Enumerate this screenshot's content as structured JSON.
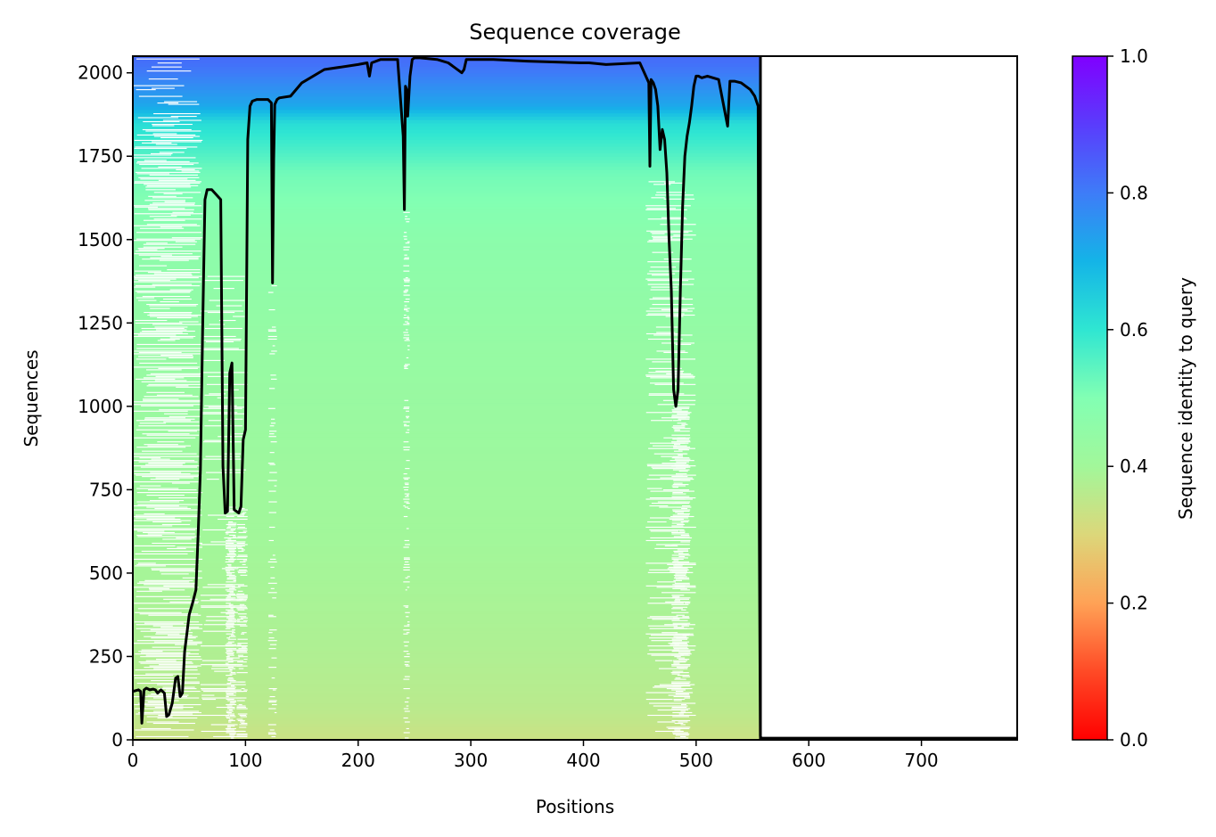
{
  "chart_data": {
    "type": "heatmap",
    "title": "Sequence coverage",
    "xlabel": "Positions",
    "ylabel": "Sequences",
    "xlim": [
      0,
      785
    ],
    "ylim": [
      0,
      2050
    ],
    "xticks": [
      0,
      100,
      200,
      300,
      400,
      500,
      600,
      700
    ],
    "yticks": [
      0,
      250,
      500,
      750,
      1000,
      1250,
      1500,
      1750,
      2000
    ],
    "query_length": 558,
    "n_sequences": 2050,
    "colorbar": {
      "label": "Sequence identity to query",
      "colormap": "rainbow",
      "range": [
        0.0,
        1.0
      ],
      "ticks": [
        0.0,
        0.2,
        0.4,
        0.6,
        0.8,
        1.0
      ],
      "tick_labels": [
        "0.0",
        "0.2",
        "0.4",
        "0.6",
        "0.8",
        "1.0"
      ]
    },
    "identity_by_sequence_rank": {
      "sequence": [
        0,
        100,
        300,
        600,
        900,
        1200,
        1500,
        1700,
        1850,
        1900,
        2000,
        2050
      ],
      "identity": [
        0.33,
        0.36,
        0.38,
        0.4,
        0.42,
        0.44,
        0.47,
        0.52,
        0.62,
        0.72,
        0.8,
        0.83
      ]
    },
    "coverage_line": {
      "name": "coverage",
      "x": [
        0,
        5,
        7,
        8,
        10,
        12,
        15,
        18,
        20,
        22,
        25,
        28,
        30,
        32,
        35,
        38,
        40,
        42,
        44,
        46,
        48,
        50,
        53,
        56,
        58,
        60,
        62,
        64,
        66,
        70,
        78,
        80,
        82,
        84,
        86,
        88,
        90,
        92,
        94,
        96,
        98,
        100,
        102,
        104,
        106,
        110,
        120,
        123,
        124,
        125,
        126,
        128,
        130,
        140,
        150,
        170,
        200,
        208,
        210,
        212,
        220,
        235,
        240,
        241,
        242,
        243,
        244,
        246,
        248,
        250,
        255,
        270,
        280,
        290,
        292,
        294,
        296,
        300,
        320,
        350,
        398,
        400,
        405,
        420,
        450,
        458,
        459,
        460,
        462,
        464,
        466,
        468,
        470,
        472,
        474,
        476,
        478,
        480,
        482,
        484,
        486,
        488,
        490,
        492,
        494,
        496,
        498,
        500,
        502,
        505,
        510,
        520,
        528,
        530,
        532,
        534,
        540,
        548,
        552,
        555,
        556,
        557,
        558,
        560,
        785
      ],
      "y": [
        145,
        150,
        145,
        50,
        150,
        155,
        150,
        152,
        150,
        140,
        150,
        140,
        70,
        75,
        110,
        185,
        190,
        130,
        140,
        265,
        320,
        375,
        410,
        450,
        620,
        810,
        1230,
        1620,
        1650,
        1650,
        1620,
        820,
        680,
        685,
        1100,
        1130,
        690,
        685,
        680,
        700,
        900,
        930,
        1800,
        1900,
        1915,
        1920,
        1920,
        1910,
        1370,
        1740,
        1905,
        1920,
        1925,
        1930,
        1970,
        2010,
        2025,
        2030,
        1990,
        2030,
        2040,
        2040,
        1810,
        1590,
        1960,
        1950,
        1870,
        1990,
        2040,
        2045,
        2045,
        2040,
        2030,
        2005,
        2000,
        2010,
        2040,
        2040,
        2040,
        2035,
        2030,
        2030,
        2030,
        2025,
        2030,
        1970,
        1720,
        1980,
        1970,
        1950,
        1900,
        1770,
        1830,
        1800,
        1700,
        1500,
        1350,
        1050,
        1000,
        1050,
        1350,
        1600,
        1750,
        1810,
        1850,
        1900,
        1960,
        1990,
        1990,
        1985,
        1990,
        1980,
        1840,
        1975,
        1975,
        1975,
        1970,
        1950,
        1930,
        1900,
        700,
        10,
        5,
        5,
        5
      ]
    },
    "gaps": [
      {
        "x": [
          0,
          62
        ],
        "y": [
          0,
          1880
        ],
        "density": 0.7
      },
      {
        "x": [
          0,
          60
        ],
        "y": [
          1880,
          2050
        ],
        "density": 0.25
      },
      {
        "x": [
          60,
          102
        ],
        "y": [
          0,
          1400
        ],
        "density": 0.25
      },
      {
        "x": [
          82,
          92
        ],
        "y": [
          0,
          700
        ],
        "density": 0.9
      },
      {
        "x": [
          92,
          102
        ],
        "y": [
          0,
          700
        ],
        "density": 0.5
      },
      {
        "x": [
          240,
          246
        ],
        "y": [
          0,
          1600
        ],
        "density": 0.3
      },
      {
        "x": [
          455,
          500
        ],
        "y": [
          0,
          1700
        ],
        "density": 0.35
      },
      {
        "x": [
          478,
          495
        ],
        "y": [
          0,
          1000
        ],
        "density": 0.8
      },
      {
        "x": [
          120,
          128
        ],
        "y": [
          0,
          1380
        ],
        "density": 0.15
      }
    ]
  }
}
